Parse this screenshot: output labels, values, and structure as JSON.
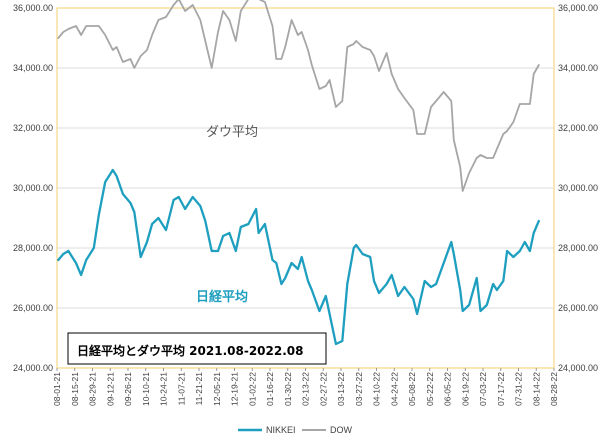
{
  "chart_data": {
    "type": "line",
    "title": "日経平均とダウ平均 2021.08-2022.08",
    "annotations": {
      "dow": "ダウ平均",
      "nikkei": "日経平均"
    },
    "legend_position": "bottom",
    "grid": true,
    "ylim": [
      24000,
      36000
    ],
    "y_ticks": [
      "24,000.00",
      "26,000.00",
      "28,000.00",
      "30,000.00",
      "32,000.00",
      "34,000.00",
      "36,000.00"
    ],
    "x_ticks": [
      "08-01-21",
      "08-15-21",
      "08-29-21",
      "09-12-21",
      "09-26-21",
      "10-10-21",
      "10-24-21",
      "11-07-21",
      "11-21-21",
      "12-05-21",
      "12-19-21",
      "01-02-22",
      "01-16-22",
      "01-30-22",
      "02-13-22",
      "02-27-22",
      "03-13-22",
      "03-27-22",
      "04-10-22",
      "04-24-22",
      "05-08-22",
      "05-22-22",
      "06-05-22",
      "06-19-22",
      "07-03-22",
      "07-17-22",
      "07-31-22",
      "08-14-22",
      "08-28-22"
    ],
    "x_range": [
      "2021-08-01",
      "2022-08-28"
    ],
    "colors": {
      "NIKKEI": "#1f9fbf",
      "DOW": "#a6a6a6",
      "plot_border": "#f3d06b",
      "grid": "#dcdcdc"
    },
    "series": [
      {
        "name": "NIKKEI",
        "x": [
          "2021-08-02",
          "2021-08-06",
          "2021-08-10",
          "2021-08-16",
          "2021-08-20",
          "2021-08-24",
          "2021-08-30",
          "2021-09-03",
          "2021-09-08",
          "2021-09-14",
          "2021-09-17",
          "2021-09-22",
          "2021-09-28",
          "2021-10-01",
          "2021-10-06",
          "2021-10-11",
          "2021-10-15",
          "2021-10-20",
          "2021-10-26",
          "2021-11-01",
          "2021-11-05",
          "2021-11-10",
          "2021-11-16",
          "2021-11-22",
          "2021-11-26",
          "2021-12-01",
          "2021-12-06",
          "2021-12-10",
          "2021-12-15",
          "2021-12-20",
          "2021-12-24",
          "2021-12-30",
          "2022-01-05",
          "2022-01-07",
          "2022-01-12",
          "2022-01-18",
          "2022-01-21",
          "2022-01-25",
          "2022-01-28",
          "2022-02-02",
          "2022-02-07",
          "2022-02-10",
          "2022-02-15",
          "2022-02-18",
          "2022-02-24",
          "2022-03-01",
          "2022-03-04",
          "2022-03-09",
          "2022-03-14",
          "2022-03-18",
          "2022-03-23",
          "2022-03-25",
          "2022-03-30",
          "2022-04-05",
          "2022-04-08",
          "2022-04-12",
          "2022-04-18",
          "2022-04-22",
          "2022-04-27",
          "2022-05-02",
          "2022-05-09",
          "2022-05-12",
          "2022-05-18",
          "2022-05-23",
          "2022-05-27",
          "2022-06-02",
          "2022-06-08",
          "2022-06-10",
          "2022-06-15",
          "2022-06-17",
          "2022-06-22",
          "2022-06-28",
          "2022-07-01",
          "2022-07-06",
          "2022-07-11",
          "2022-07-14",
          "2022-07-19",
          "2022-07-22",
          "2022-07-27",
          "2022-08-01",
          "2022-08-05",
          "2022-08-09",
          "2022-08-12",
          "2022-08-16"
        ],
        "values": [
          27600,
          27800,
          27900,
          27500,
          27100,
          27600,
          28000,
          29100,
          30200,
          30600,
          30400,
          29800,
          29500,
          29200,
          27700,
          28200,
          28800,
          29000,
          28600,
          29600,
          29700,
          29300,
          29700,
          29400,
          28900,
          27900,
          27900,
          28400,
          28500,
          27900,
          28700,
          28800,
          29300,
          28500,
          28800,
          27600,
          27500,
          26800,
          27000,
          27500,
          27300,
          27700,
          26900,
          26600,
          25900,
          26400,
          25800,
          24800,
          24900,
          26800,
          28000,
          28100,
          27800,
          27700,
          26900,
          26500,
          26800,
          27100,
          26400,
          26700,
          26300,
          25800,
          26900,
          26700,
          26800,
          27500,
          28200,
          27800,
          26600,
          25900,
          26100,
          27000,
          25900,
          26100,
          26800,
          26600,
          26900,
          27900,
          27700,
          27900,
          28200,
          27900,
          28500,
          28900
        ]
      },
      {
        "name": "DOW",
        "x": [
          "2021-08-02",
          "2021-08-06",
          "2021-08-10",
          "2021-08-16",
          "2021-08-20",
          "2021-08-24",
          "2021-08-30",
          "2021-09-03",
          "2021-09-08",
          "2021-09-14",
          "2021-09-17",
          "2021-09-22",
          "2021-09-28",
          "2021-10-01",
          "2021-10-06",
          "2021-10-11",
          "2021-10-15",
          "2021-10-20",
          "2021-10-26",
          "2021-11-01",
          "2021-11-05",
          "2021-11-10",
          "2021-11-16",
          "2021-11-22",
          "2021-11-26",
          "2021-12-01",
          "2021-12-06",
          "2021-12-10",
          "2021-12-15",
          "2021-12-20",
          "2021-12-24",
          "2021-12-30",
          "2022-01-05",
          "2022-01-07",
          "2022-01-12",
          "2022-01-18",
          "2022-01-21",
          "2022-01-25",
          "2022-01-28",
          "2022-02-02",
          "2022-02-07",
          "2022-02-10",
          "2022-02-15",
          "2022-02-18",
          "2022-02-24",
          "2022-03-01",
          "2022-03-04",
          "2022-03-09",
          "2022-03-14",
          "2022-03-18",
          "2022-03-23",
          "2022-03-25",
          "2022-03-30",
          "2022-04-05",
          "2022-04-08",
          "2022-04-12",
          "2022-04-18",
          "2022-04-22",
          "2022-04-27",
          "2022-05-02",
          "2022-05-09",
          "2022-05-12",
          "2022-05-18",
          "2022-05-23",
          "2022-05-27",
          "2022-06-02",
          "2022-06-08",
          "2022-06-10",
          "2022-06-15",
          "2022-06-17",
          "2022-06-22",
          "2022-06-28",
          "2022-07-01",
          "2022-07-06",
          "2022-07-11",
          "2022-07-14",
          "2022-07-19",
          "2022-07-22",
          "2022-07-27",
          "2022-08-01",
          "2022-08-05",
          "2022-08-09",
          "2022-08-12",
          "2022-08-16"
        ],
        "values": [
          35000,
          35200,
          35300,
          35400,
          35100,
          35400,
          35400,
          35400,
          35100,
          34600,
          34700,
          34200,
          34300,
          34000,
          34400,
          34600,
          35100,
          35600,
          35700,
          36100,
          36300,
          35900,
          36100,
          35600,
          34900,
          34000,
          35200,
          35900,
          35600,
          34900,
          35900,
          36300,
          36700,
          36300,
          36200,
          35400,
          34300,
          34300,
          34700,
          35600,
          35100,
          35200,
          34600,
          34100,
          33300,
          33400,
          33600,
          32700,
          32900,
          34700,
          34800,
          34900,
          34700,
          34600,
          34400,
          33900,
          34500,
          33800,
          33300,
          33000,
          32600,
          31800,
          31800,
          32700,
          32900,
          33200,
          32900,
          31600,
          30700,
          29900,
          30500,
          31000,
          31100,
          31000,
          31000,
          31300,
          31800,
          31900,
          32200,
          32800,
          32800,
          32800,
          33800,
          34100
        ]
      }
    ]
  }
}
